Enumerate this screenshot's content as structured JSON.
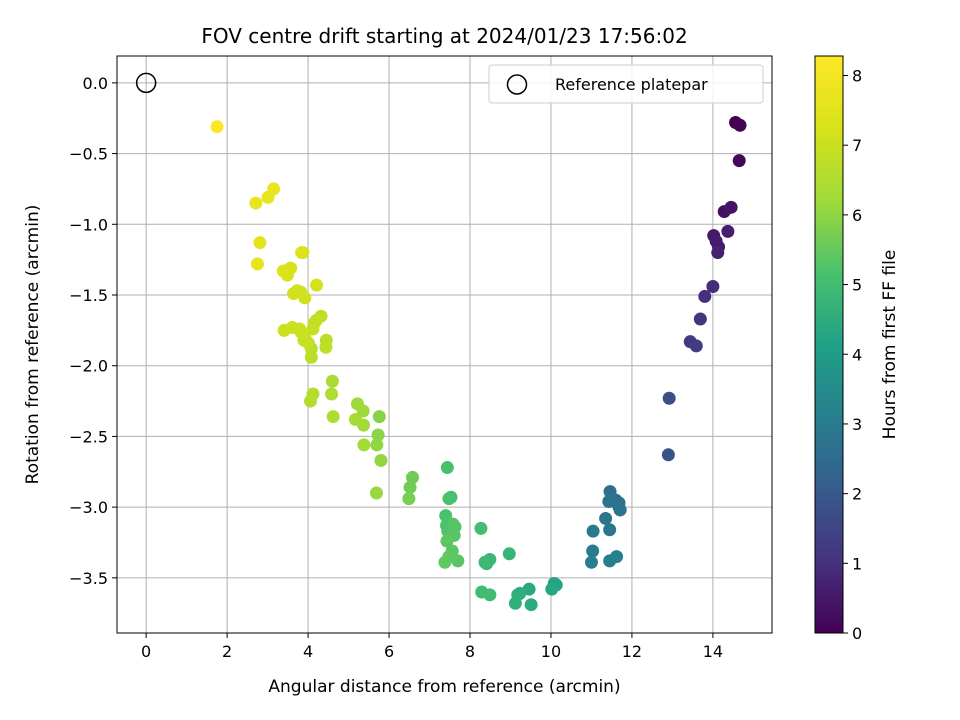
{
  "chart_data": {
    "type": "scatter",
    "title": "FOV centre drift starting at 2024/01/23 17:56:02",
    "xlabel": "Angular distance from reference (arcmin)",
    "ylabel": "Rotation from reference (arcmin)",
    "xlim": [
      -0.72,
      15.46
    ],
    "ylim": [
      -3.89,
      0.19
    ],
    "xticks": [
      0,
      2,
      4,
      6,
      8,
      10,
      12,
      14
    ],
    "xtick_labels": [
      "0",
      "2",
      "4",
      "6",
      "8",
      "10",
      "12",
      "14"
    ],
    "yticks": [
      0.0,
      -0.5,
      -1.0,
      -1.5,
      -2.0,
      -2.5,
      -3.0,
      -3.5
    ],
    "ytick_labels": [
      "0.0",
      "−0.5",
      "−1.0",
      "−1.5",
      "−2.0",
      "−2.5",
      "−3.0",
      "−3.5"
    ],
    "grid": true,
    "legend": {
      "position": "top-right",
      "label": "Reference platepar"
    },
    "reference_point": {
      "x": 0.0,
      "y": 0.0
    },
    "colorbar": {
      "label": "Hours from first FF file",
      "colormap": "viridis",
      "range": [
        0,
        8.28
      ],
      "ticks": [
        0,
        1,
        2,
        3,
        4,
        5,
        6,
        7,
        8
      ],
      "tick_labels": [
        "0",
        "1",
        "2",
        "3",
        "4",
        "5",
        "6",
        "7",
        "8"
      ]
    },
    "series": [
      {
        "x": [
          14.56,
          14.67,
          14.65,
          14.28,
          14.45,
          14.02,
          14.08,
          14.14,
          14.37,
          14.12,
          14.0,
          13.8,
          13.69,
          13.44,
          13.59,
          12.92,
          12.9,
          11.46,
          11.6,
          11.68,
          11.71,
          11.68,
          11.43,
          11.35,
          11.45,
          11.04,
          11.03,
          11.0,
          11.45,
          11.62,
          10.08,
          10.13,
          10.02,
          9.46,
          9.51,
          9.18,
          9.23,
          9.12,
          8.97,
          8.41,
          8.49,
          8.37,
          8.29,
          8.49,
          8.27,
          7.44,
          7.53,
          7.48,
          7.4,
          7.42,
          7.45,
          7.49,
          7.58,
          7.63,
          7.61,
          7.7,
          7.56,
          7.43,
          7.48,
          7.38,
          6.58,
          6.52,
          6.49,
          5.76,
          5.73,
          5.7,
          5.8,
          5.69,
          5.36,
          5.22,
          5.37,
          5.38,
          5.17,
          4.6,
          4.58,
          4.62,
          4.06,
          4.12,
          4.08,
          4.08,
          4.45,
          4.44,
          4.32,
          4.2,
          4.15,
          4.12,
          4.01,
          3.92,
          3.9,
          3.79,
          3.82,
          3.61,
          3.41,
          3.73,
          3.92,
          3.82,
          3.64,
          4.21,
          3.87,
          3.57,
          3.49,
          3.39,
          3.84,
          2.81,
          2.75,
          3.01,
          2.71,
          3.15,
          1.75
        ],
        "y": [
          -0.28,
          -0.3,
          -0.55,
          -0.91,
          -0.88,
          -1.08,
          -1.12,
          -1.16,
          -1.05,
          -1.2,
          -1.44,
          -1.51,
          -1.67,
          -1.83,
          -1.86,
          -2.23,
          -2.63,
          -2.89,
          -2.95,
          -2.97,
          -3.02,
          -3.0,
          -2.96,
          -3.08,
          -3.16,
          -3.17,
          -3.31,
          -3.39,
          -3.38,
          -3.35,
          -3.54,
          -3.55,
          -3.58,
          -3.58,
          -3.69,
          -3.62,
          -3.61,
          -3.68,
          -3.33,
          -3.4,
          -3.37,
          -3.39,
          -3.6,
          -3.62,
          -3.15,
          -2.72,
          -2.93,
          -2.94,
          -3.06,
          -3.13,
          -3.17,
          -3.18,
          -3.12,
          -3.14,
          -3.2,
          -3.38,
          -3.31,
          -3.24,
          -3.35,
          -3.39,
          -2.79,
          -2.86,
          -2.94,
          -2.36,
          -2.49,
          -2.56,
          -2.67,
          -2.9,
          -2.32,
          -2.27,
          -2.42,
          -2.56,
          -2.38,
          -2.11,
          -2.2,
          -2.36,
          -2.25,
          -2.2,
          -1.88,
          -1.94,
          -1.82,
          -1.87,
          -1.65,
          -1.68,
          -1.7,
          -1.74,
          -1.84,
          -1.8,
          -1.82,
          -1.74,
          -1.76,
          -1.73,
          -1.75,
          -1.47,
          -1.52,
          -1.48,
          -1.49,
          -1.43,
          -1.2,
          -1.31,
          -1.36,
          -1.33,
          -1.2,
          -1.13,
          -1.28,
          -0.81,
          -0.85,
          -0.75,
          -0.31
        ],
        "c": [
          0.0,
          0.05,
          0.15,
          0.3,
          0.4,
          0.5,
          0.55,
          0.6,
          0.65,
          0.7,
          0.9,
          1.0,
          1.1,
          1.2,
          1.3,
          1.7,
          1.8,
          2.6,
          2.65,
          2.7,
          2.72,
          2.75,
          2.78,
          2.82,
          2.85,
          2.95,
          3.0,
          3.05,
          3.1,
          3.15,
          4.2,
          4.25,
          4.3,
          4.4,
          4.45,
          4.5,
          4.55,
          4.6,
          4.75,
          4.8,
          4.85,
          4.9,
          4.95,
          5.0,
          5.05,
          5.1,
          5.12,
          5.15,
          5.18,
          5.2,
          5.22,
          5.25,
          5.28,
          5.3,
          5.32,
          5.35,
          5.38,
          5.4,
          5.42,
          5.45,
          5.6,
          5.65,
          5.7,
          5.9,
          5.95,
          6.0,
          6.05,
          6.1,
          6.15,
          6.2,
          6.25,
          6.3,
          6.32,
          6.4,
          6.45,
          6.5,
          6.55,
          6.6,
          6.7,
          6.72,
          6.75,
          6.78,
          6.8,
          6.82,
          6.85,
          6.88,
          6.9,
          6.92,
          6.95,
          6.98,
          7.0,
          7.02,
          7.05,
          7.08,
          7.1,
          7.12,
          7.15,
          7.18,
          7.2,
          7.25,
          7.3,
          7.35,
          7.4,
          7.6,
          7.65,
          7.7,
          7.75,
          7.8,
          8.28
        ]
      }
    ]
  }
}
